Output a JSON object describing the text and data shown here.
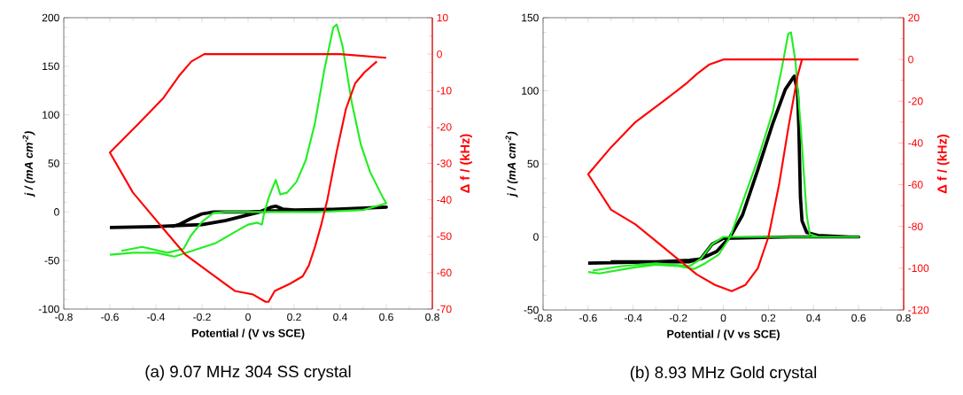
{
  "chart_data": [
    {
      "type": "line",
      "xlabel": "Potential / (V vs SCE)",
      "ylabel": "j / (mA cm$^{-2}$)",
      "y2label": "Δ f / (kHz)",
      "annotations": [
        "(a) 9.07 MHz 304 SS crystal"
      ],
      "xlim": [
        -0.8,
        0.8
      ],
      "xticks": [
        -0.8,
        -0.6,
        -0.4,
        -0.2,
        0,
        0.2,
        0.4,
        0.6,
        0.8
      ],
      "ylim": [
        -100,
        200
      ],
      "yticks": [
        -100,
        -50,
        0,
        50,
        100,
        150,
        200
      ],
      "y2lim": [
        -70,
        10
      ],
      "y2ticks": [
        -70,
        -60,
        -50,
        -40,
        -30,
        -20,
        -10,
        0,
        10
      ],
      "series": [
        {
          "color": "#000000",
          "x": [
            -0.6,
            -0.4,
            -0.3,
            -0.2,
            -0.1,
            0,
            0.05,
            0.1,
            0.12,
            0.15,
            0.2,
            0.4,
            0.6,
            0.3,
            0.1,
            0,
            -0.15,
            -0.2,
            -0.25,
            -0.3,
            -0.33
          ],
          "values": [
            -16,
            -15,
            -14,
            -13,
            -9,
            -3,
            0,
            5,
            6,
            3,
            2,
            3,
            5,
            2,
            1,
            0,
            0,
            -2,
            -7,
            -13,
            -15
          ]
        },
        {
          "color": "#22ee22",
          "x": [
            -0.6,
            -0.5,
            -0.4,
            -0.32,
            -0.14,
            -0.06,
            0,
            0.04,
            0.06,
            0.07,
            0.09,
            0.12,
            0.14,
            0.17,
            0.21,
            0.25,
            0.29,
            0.33,
            0.37,
            0.385,
            0.41,
            0.45,
            0.49,
            0.53,
            0.585,
            0.6,
            0.5,
            0.3,
            0.1,
            -0.1,
            -0.15,
            -0.2,
            -0.25,
            -0.28,
            -0.35,
            -0.46,
            -0.55
          ],
          "values": [
            -44,
            -42,
            -42,
            -46,
            -32,
            -21,
            -13,
            -11,
            -13,
            -1,
            15,
            33,
            18,
            20,
            31,
            53,
            91,
            145,
            190,
            193,
            171,
            113,
            69,
            41,
            15,
            9,
            2,
            0,
            0,
            0,
            -1,
            -10,
            -25,
            -38,
            -42,
            -36,
            -40
          ]
        },
        {
          "color": "#ff0000",
          "axis": "y2",
          "x": [
            0.6,
            0.4,
            0.2,
            0,
            -0.15,
            -0.19,
            -0.246,
            -0.3,
            -0.367,
            -0.474,
            -0.6,
            -0.5,
            -0.367,
            -0.273,
            -0.166,
            -0.058,
            0.022,
            0.076,
            0.089,
            0.116,
            0.183,
            0.237,
            0.264,
            0.29,
            0.317,
            0.344,
            0.384,
            0.425,
            0.465,
            0.505,
            0.559
          ],
          "values": [
            -1,
            0,
            0,
            0,
            0,
            0,
            -2,
            -6,
            -12,
            -19,
            -27,
            -38,
            -48,
            -55,
            -60,
            -65,
            -66,
            -68,
            -68,
            -65,
            -63,
            -61,
            -58,
            -53,
            -47,
            -40,
            -27,
            -15,
            -8,
            -5,
            -2
          ]
        }
      ]
    },
    {
      "type": "line",
      "xlabel": "Potential / (V vs SCE)",
      "ylabel": "j / (mA cm$^{-2}$)",
      "y2label": "Δ f / (kHz)",
      "annotations": [
        "(b) 8.93 MHz Gold crystal"
      ],
      "xlim": [
        -0.8,
        0.8
      ],
      "xticks": [
        -0.8,
        -0.6,
        -0.4,
        -0.2,
        0,
        0.2,
        0.4,
        0.6,
        0.8
      ],
      "ylim": [
        -50,
        150
      ],
      "yticks": [
        -50,
        0,
        50,
        100,
        150
      ],
      "y2lim": [
        -120,
        20
      ],
      "y2ticks": [
        -120,
        -100,
        -80,
        -60,
        -40,
        -20,
        0,
        20
      ],
      "series": [
        {
          "color": "#000000",
          "x": [
            -0.6,
            -0.3,
            -0.15,
            -0.1,
            -0.03,
            0.03,
            0.085,
            0.153,
            0.22,
            0.275,
            0.31,
            0.315,
            0.329,
            0.335,
            0.342,
            0.349,
            0.37,
            0.42,
            0.56,
            0.6,
            0.3,
            0,
            -0.05,
            -0.1,
            -0.15,
            -0.5
          ],
          "values": [
            -18,
            -17,
            -16,
            -15,
            -10,
            0,
            15,
            46,
            78,
            101,
            109,
            110,
            99,
            74,
            27,
            11,
            3,
            1,
            0,
            0,
            0,
            -1,
            -5,
            -15,
            -17,
            -17
          ]
        },
        {
          "color": "#22ee22",
          "x": [
            -0.6,
            -0.55,
            -0.4,
            -0.3,
            -0.2,
            -0.13,
            -0.08,
            -0.02,
            0.03,
            0.153,
            0.22,
            0.26,
            0.288,
            0.3,
            0.32,
            0.342,
            0.356,
            0.37,
            0.383,
            0.42,
            0.6,
            0,
            -0.05,
            -0.1,
            -0.15,
            -0.3,
            -0.45,
            -0.58
          ],
          "values": [
            -24,
            -25,
            -21,
            -19,
            -20,
            -22,
            -18,
            -12,
            0,
            53,
            86,
            116,
            139,
            140,
            120,
            78,
            46,
            15,
            2,
            0,
            0,
            0,
            -5,
            -15,
            -20,
            -18,
            -20,
            -23
          ]
        },
        {
          "color": "#ff0000",
          "axis": "y2",
          "x": [
            0.6,
            0.3,
            0,
            -0.064,
            -0.118,
            -0.159,
            -0.254,
            -0.39,
            -0.498,
            -0.6,
            -0.498,
            -0.39,
            -0.254,
            -0.118,
            -0.037,
            0.037,
            0.098,
            0.153,
            0.2,
            0.247,
            0.288,
            0.329,
            0.349
          ],
          "values": [
            0,
            0,
            0,
            -2.5,
            -7,
            -11,
            -19,
            -30,
            -42,
            -55,
            -72,
            -79,
            -91,
            -103,
            -108,
            -111,
            -108,
            -100,
            -85,
            -60,
            -33,
            -8,
            0
          ]
        }
      ]
    }
  ]
}
